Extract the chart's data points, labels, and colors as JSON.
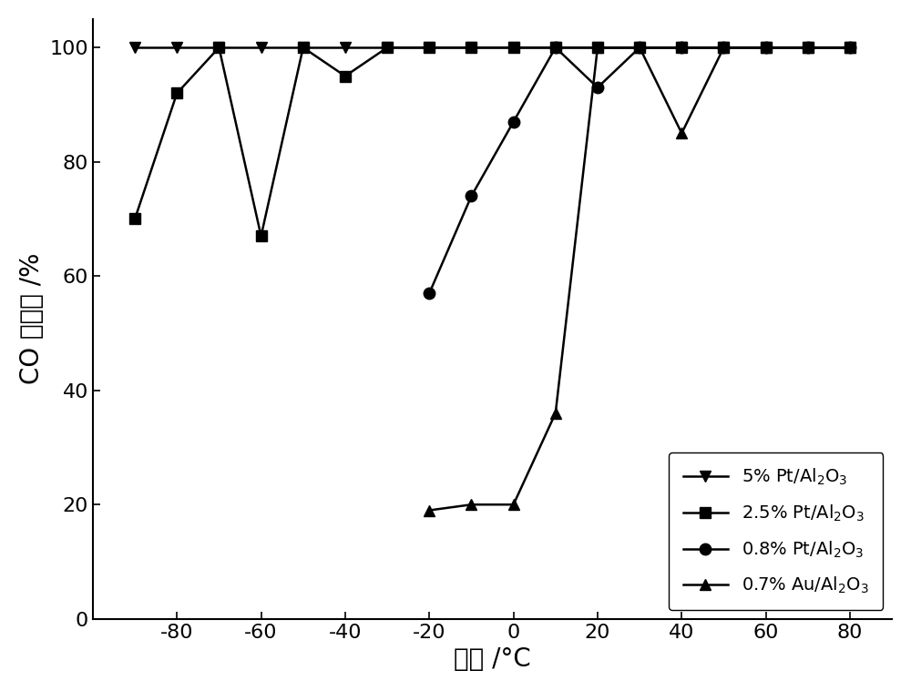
{
  "series": [
    {
      "label": "5% Pt/Al$_2$O$_3$",
      "marker": "v",
      "x": [
        -90,
        -80,
        -70,
        -60,
        -50,
        -40,
        -30,
        -20,
        -10,
        0,
        10,
        20,
        30,
        40,
        50,
        60,
        70,
        80
      ],
      "y": [
        100,
        100,
        100,
        100,
        100,
        100,
        100,
        100,
        100,
        100,
        100,
        100,
        100,
        100,
        100,
        100,
        100,
        100
      ]
    },
    {
      "label": "2.5% Pt/Al$_2$O$_3$",
      "marker": "s",
      "x": [
        -90,
        -80,
        -70,
        -60,
        -50,
        -40,
        -30,
        -20,
        -10,
        0,
        10,
        20,
        30,
        40,
        50,
        60,
        70,
        80
      ],
      "y": [
        70,
        92,
        100,
        67,
        100,
        95,
        100,
        100,
        100,
        100,
        100,
        100,
        100,
        100,
        100,
        100,
        100,
        100
      ]
    },
    {
      "label": "0.8% Pt/Al$_2$O$_3$",
      "marker": "o",
      "x": [
        -20,
        -10,
        0,
        10,
        20,
        30,
        40,
        50,
        60,
        70,
        80
      ],
      "y": [
        57,
        74,
        87,
        100,
        93,
        100,
        100,
        100,
        100,
        100,
        100
      ]
    },
    {
      "label": "0.7% Au/Al$_2$O$_3$",
      "marker": "^",
      "x": [
        -20,
        -10,
        0,
        10,
        20,
        30,
        40,
        50,
        60,
        70,
        80
      ],
      "y": [
        19,
        20,
        20,
        36,
        100,
        100,
        85,
        100,
        100,
        100,
        100
      ]
    }
  ],
  "xlabel": "温度 /°C",
  "ylabel": "CO 转化率 /%",
  "xlim": [
    -100,
    90
  ],
  "ylim": [
    0,
    105
  ],
  "xticks": [
    -80,
    -60,
    -40,
    -20,
    0,
    20,
    40,
    60,
    80
  ],
  "yticks": [
    0,
    20,
    40,
    60,
    80,
    100
  ],
  "color": "#000000",
  "linewidth": 1.8,
  "markersize": 9,
  "legend_loc": "lower right",
  "legend_fontsize": 14,
  "axis_label_fontsize": 20,
  "tick_fontsize": 16
}
